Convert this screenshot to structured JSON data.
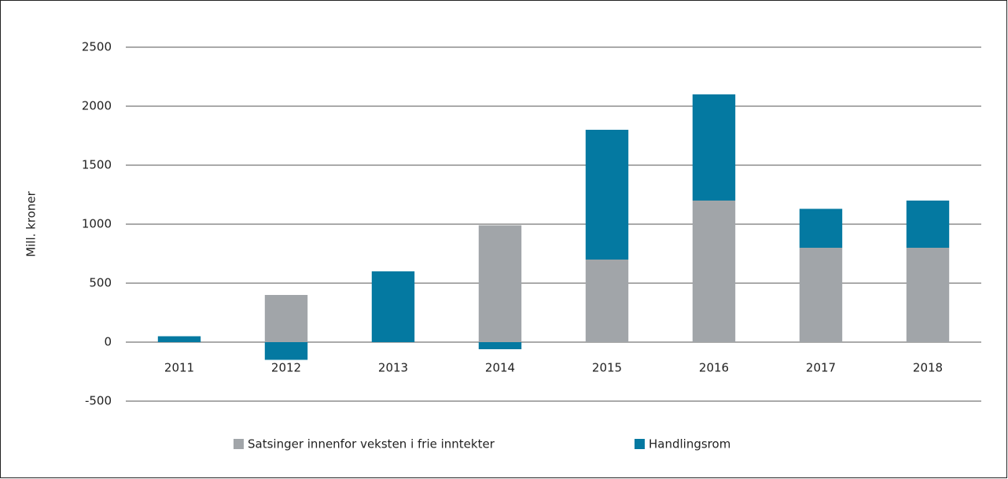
{
  "chart_data": {
    "type": "stacked_bar",
    "y_label": "Mill. kroner",
    "categories": [
      "2011",
      "2012",
      "2013",
      "2014",
      "2015",
      "2016",
      "2017",
      "2018"
    ],
    "series": [
      {
        "name": "Satsinger innenfor veksten i frie inntekter",
        "color": "#a1a5a9",
        "values": [
          0,
          400,
          0,
          990,
          700,
          1200,
          800,
          800
        ]
      },
      {
        "name": "Handlingsrom",
        "color": "#0479a1",
        "values": [
          50,
          -150,
          600,
          -60,
          1100,
          900,
          330,
          400
        ]
      }
    ],
    "ylim": [
      -500,
      2500
    ],
    "yticks": [
      -500,
      0,
      500,
      1000,
      1500,
      2000,
      2500
    ],
    "grid": true
  }
}
